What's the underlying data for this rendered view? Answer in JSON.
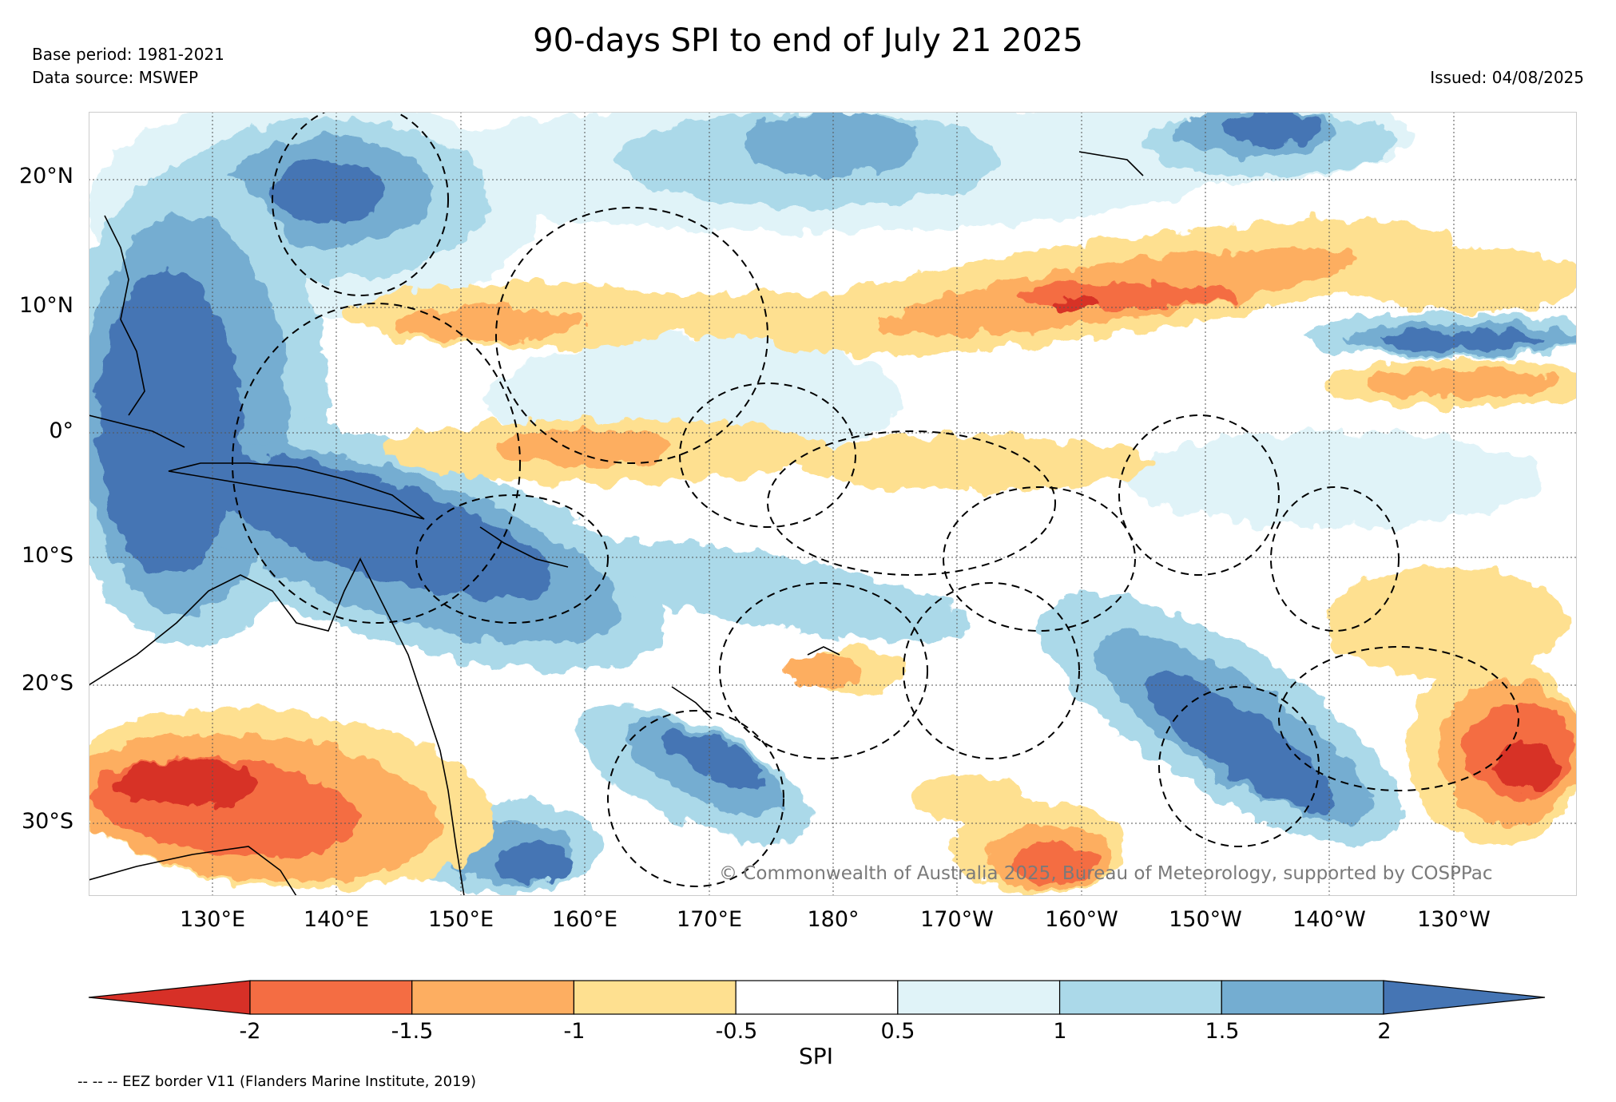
{
  "header": {
    "title": "90-days SPI to end of July 21 2025",
    "base_period": "Base period: 1981-2021",
    "data_source": "Data source: MSWEP",
    "issued": "Issued: 04/08/2025"
  },
  "map": {
    "lat_labels": [
      "20°N",
      "10°N",
      "0°",
      "10°S",
      "20°S",
      "30°S"
    ],
    "lon_labels": [
      "130°E",
      "140°E",
      "150°E",
      "160°E",
      "170°E",
      "180°",
      "170°W",
      "160°W",
      "150°W",
      "140°W",
      "130°W"
    ],
    "copyright": "© Commonwealth of Australia 2025, Bureau of Meteorology, supported by COSPPac",
    "ocean_color": "#ffffff",
    "coast_color": "#000000"
  },
  "colorbar": {
    "label": "SPI",
    "ticks": [
      "-2",
      "-1.5",
      "-1",
      "-0.5",
      "0.5",
      "1",
      "1.5",
      "2"
    ],
    "colors": [
      "#d73027",
      "#f46d43",
      "#fdae61",
      "#fee090",
      "#ffffff",
      "#e0f3f8",
      "#abd9e9",
      "#74add1",
      "#4575b4"
    ]
  },
  "footer": {
    "eez_note": "-- -- -- EEZ border V11 (Flanders Marine Institute, 2019)"
  }
}
